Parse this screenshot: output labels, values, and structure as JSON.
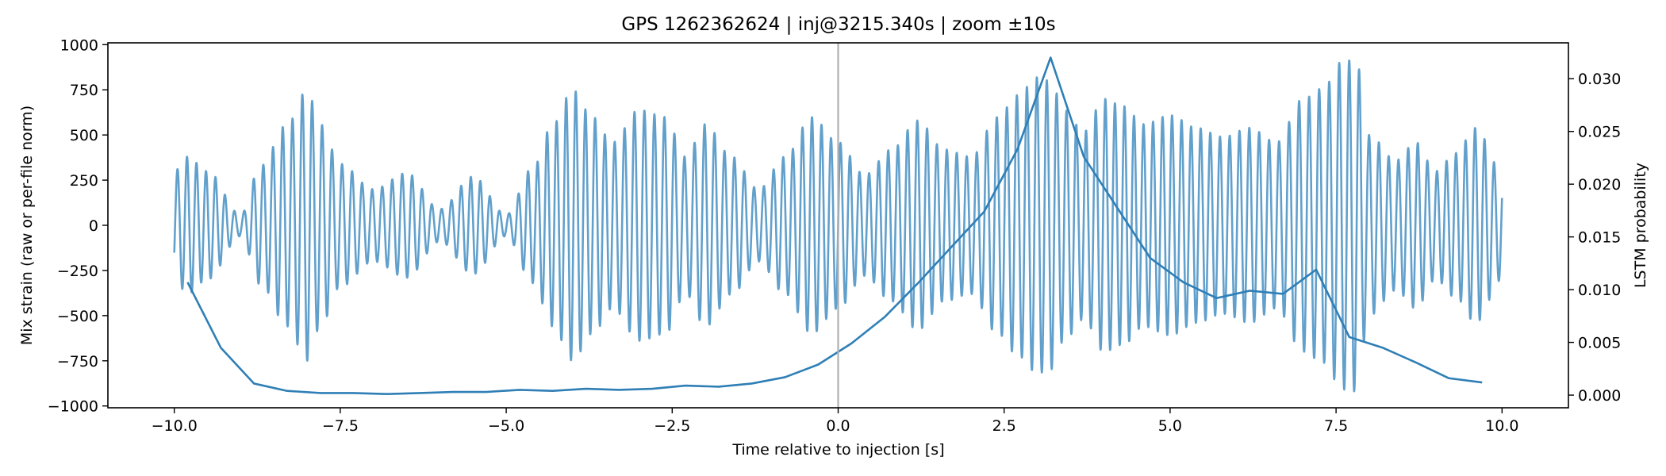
{
  "chart_data": {
    "type": "line",
    "title": "GPS 1262362624 | inj@3215.340s | zoom ±10s",
    "xlabel": "Time relative to injection [s]",
    "ylabel_left": "Mix strain (raw or per-file norm)",
    "ylabel_right": "LSTM probability",
    "xlim": [
      -11.0,
      11.0
    ],
    "ylim_left": [
      -1010,
      1010
    ],
    "ylim_right": [
      -0.0012,
      0.0334
    ],
    "x_ticks": [
      -10.0,
      -7.5,
      -5.0,
      -2.5,
      0.0,
      2.5,
      5.0,
      7.5,
      10.0
    ],
    "x_tick_labels": [
      "−10.0",
      "−7.5",
      "−5.0",
      "−2.5",
      "0.0",
      "2.5",
      "5.0",
      "7.5",
      "10.0"
    ],
    "y_left_ticks": [
      1000,
      750,
      500,
      250,
      0,
      -250,
      -500,
      -750,
      -1000
    ],
    "y_left_tick_labels": [
      "1000",
      "750",
      "500",
      "250",
      "0",
      "−250",
      "−500",
      "−750",
      "−1000"
    ],
    "y_right_ticks": [
      0.03,
      0.025,
      0.02,
      0.015,
      0.01,
      0.005,
      0.0
    ],
    "y_right_tick_labels": [
      "0.030",
      "0.025",
      "0.020",
      "0.015",
      "0.010",
      "0.005",
      "0.000"
    ],
    "injection_marker_x": 0.0,
    "colors": {
      "strain": "#5a9bc9",
      "probability": "#2f7fb6",
      "marker": "#b0b0b0",
      "axes": "#000000"
    },
    "series": [
      {
        "axis": "left",
        "style": "oscillation",
        "x_range": [
          -10.0,
          10.0
        ],
        "approx_frequency_hz": 6.8,
        "envelope": {
          "t": [
            -10.0,
            -9.8,
            -9.5,
            -9.0,
            -8.7,
            -8.3,
            -8.0,
            -7.8,
            -7.5,
            -7.0,
            -6.5,
            -6.0,
            -5.5,
            -5.0,
            -4.6,
            -4.3,
            -4.0,
            -3.7,
            -3.4,
            -3.0,
            -2.6,
            -2.3,
            -2.0,
            -1.6,
            -1.2,
            -0.8,
            -0.4,
            0.0,
            0.4,
            0.8,
            1.2,
            1.6,
            2.0,
            2.4,
            2.7,
            3.0,
            3.2,
            3.4,
            3.7,
            4.0,
            4.3,
            4.6,
            5.0,
            5.4,
            5.8,
            6.2,
            6.6,
            7.0,
            7.3,
            7.6,
            7.8,
            8.0,
            8.4,
            8.7,
            9.0,
            9.3,
            9.6,
            10.0
          ],
          "a": [
            300,
            380,
            300,
            60,
            330,
            560,
            750,
            560,
            340,
            200,
            290,
            90,
            270,
            60,
            320,
            560,
            750,
            600,
            460,
            640,
            600,
            380,
            560,
            380,
            200,
            380,
            600,
            460,
            280,
            420,
            580,
            420,
            380,
            600,
            720,
            820,
            800,
            640,
            520,
            700,
            660,
            560,
            610,
            540,
            490,
            540,
            460,
            700,
            760,
            910,
            920,
            500,
            360,
            460,
            300,
            400,
            540,
            300
          ]
        }
      },
      {
        "axis": "right",
        "style": "line",
        "x": [
          -9.8,
          -9.3,
          -8.8,
          -8.3,
          -7.8,
          -7.3,
          -6.8,
          -6.3,
          -5.8,
          -5.3,
          -4.8,
          -4.3,
          -3.8,
          -3.3,
          -2.8,
          -2.3,
          -1.8,
          -1.3,
          -0.8,
          -0.3,
          0.2,
          0.7,
          1.2,
          1.7,
          2.2,
          2.7,
          3.2,
          3.7,
          4.2,
          4.7,
          5.2,
          5.7,
          6.2,
          6.7,
          7.2,
          7.7,
          8.2,
          8.7,
          9.2,
          9.7
        ],
        "values": [
          0.0107,
          0.0045,
          0.0011,
          0.0004,
          0.0002,
          0.0002,
          0.0001,
          0.0002,
          0.0003,
          0.0003,
          0.0005,
          0.0004,
          0.0006,
          0.0005,
          0.0006,
          0.0009,
          0.0008,
          0.0011,
          0.0017,
          0.0029,
          0.0049,
          0.0074,
          0.0106,
          0.014,
          0.0174,
          0.0233,
          0.032,
          0.0226,
          0.0178,
          0.013,
          0.0107,
          0.0092,
          0.0099,
          0.0096,
          0.0119,
          0.0055,
          0.0045,
          0.0031,
          0.0016,
          0.0012
        ]
      }
    ]
  }
}
